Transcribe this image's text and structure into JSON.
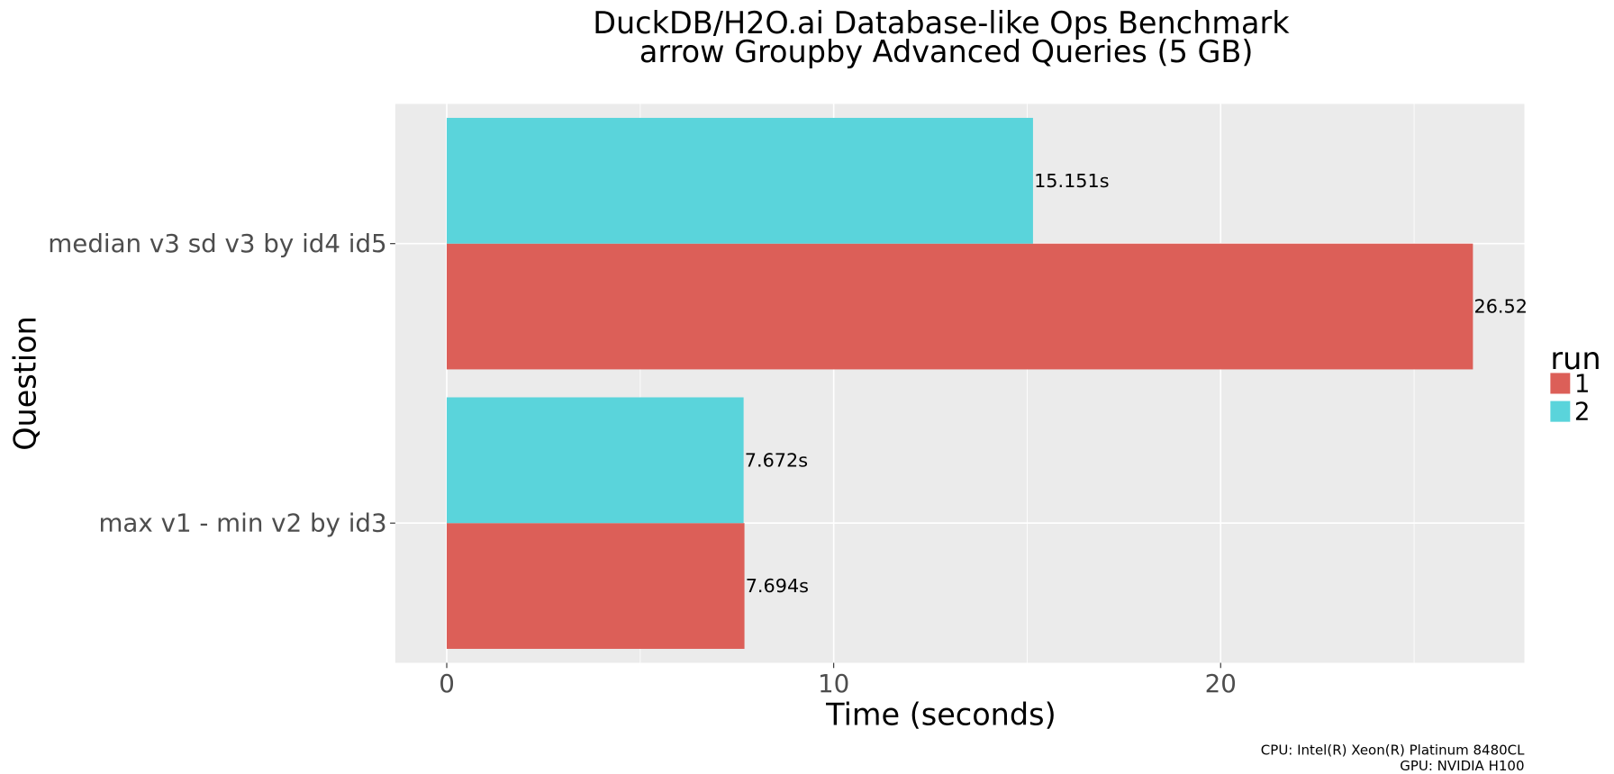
{
  "chart_data": {
    "type": "barh",
    "title": "DuckDB/H2O.ai Database-like Ops Benchmark",
    "subtitle": "arrow Groupby Advanced Queries (5 GB)",
    "x_label": "Time (seconds)",
    "y_label": "Question",
    "categories": [
      "median v3 sd v3 by id4 id5",
      "max v1 - min v2 by id3"
    ],
    "series": [
      {
        "name": "1",
        "color": "#dc5f58",
        "values": [
          26.52,
          7.694
        ],
        "value_labels": [
          "26.52",
          "7.694s"
        ]
      },
      {
        "name": "2",
        "color": "#5ad4db",
        "values": [
          15.151,
          7.672
        ],
        "value_labels": [
          "15.151s",
          "7.672s"
        ]
      }
    ],
    "legend_title": "run",
    "legend": "right",
    "xlim": [
      -1.33,
      27.85
    ],
    "xticks": [
      0,
      10,
      20
    ],
    "x_minor_grid": [
      5,
      15,
      25
    ],
    "grid": true,
    "caption": [
      "CPU: Intel(R) Xeon(R) Platinum 8480CL",
      "GPU: NVIDIA H100"
    ]
  }
}
